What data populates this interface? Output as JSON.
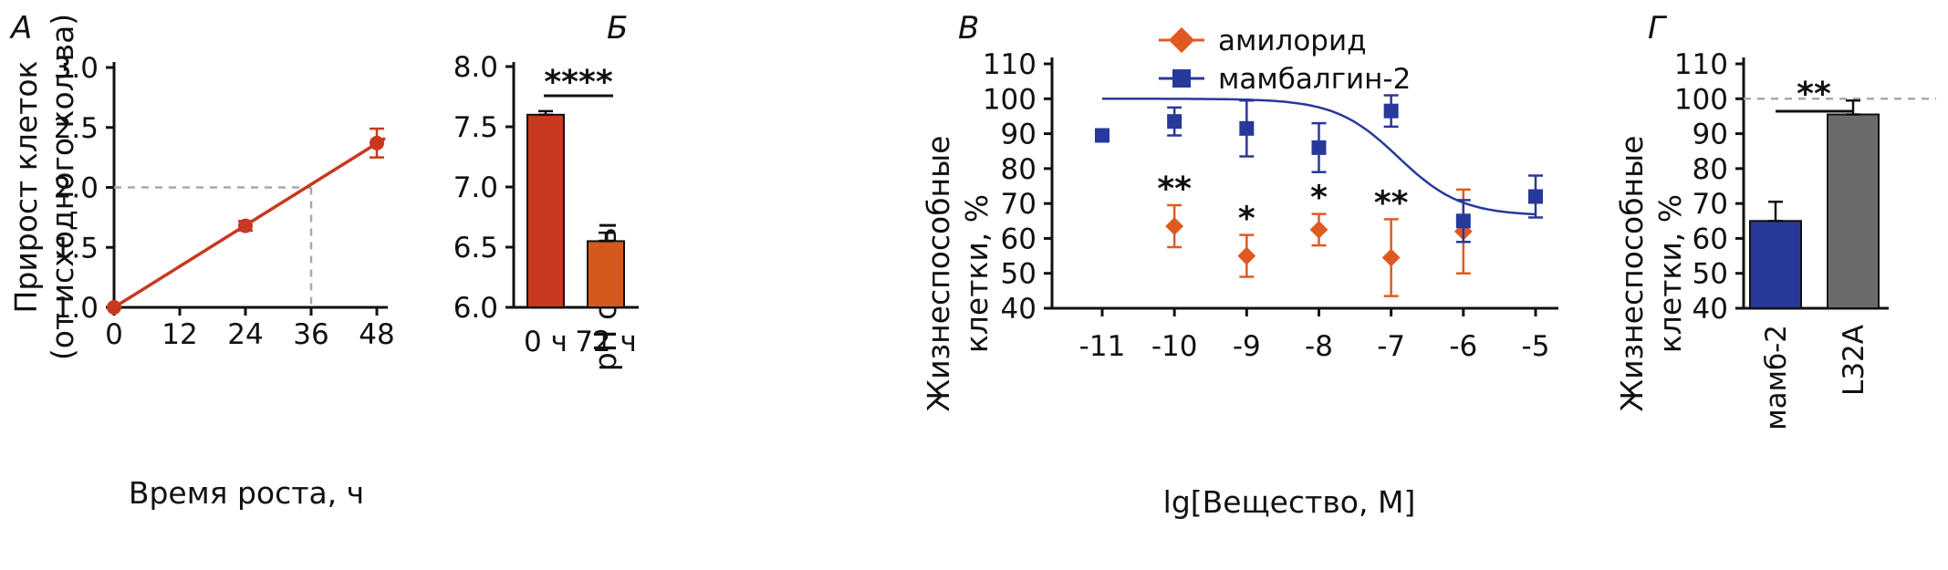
{
  "panels": {
    "a": {
      "letter": "А"
    },
    "b": {
      "letter": "Б"
    },
    "c": {
      "letter": "В"
    },
    "d": {
      "letter": "Г"
    }
  },
  "colors": {
    "red": "#c8381f",
    "orange": "#d35a1a",
    "amiloride": "#df5a20",
    "blue": "#27399a",
    "gray": "#6b6b6b",
    "dashed": "#a9a9a9"
  },
  "chart_data": [
    {
      "type": "line",
      "ylabel_lines": [
        "Прирост клеток",
        "(от исходного кол-ва)"
      ],
      "xlabel": "Время роста, ч",
      "xlim": [
        0,
        50
      ],
      "ylim": [
        1.0,
        3.0
      ],
      "x_ticks": [
        0,
        12,
        24,
        36,
        48
      ],
      "y_ticks": [
        1.0,
        1.5,
        2.0,
        2.5,
        3.0
      ],
      "y_tick_labels": [
        "1.0",
        "1.5",
        "2.0",
        "2.5",
        "3.0"
      ],
      "series": [
        {
          "x": [
            0,
            24,
            48
          ],
          "y": [
            1.0,
            1.68,
            2.37
          ],
          "err": [
            0.01,
            0.04,
            0.12
          ],
          "color": "#c8381f"
        }
      ],
      "fit_line": {
        "x": [
          0,
          49.5
        ],
        "y": [
          1.0,
          2.41
        ]
      },
      "reference": {
        "x": 36,
        "y": 2.0,
        "style": "dashed"
      },
      "grid": false
    },
    {
      "type": "bar",
      "ylabel": "pH среды",
      "categories": [
        "0 ч",
        "72 ч"
      ],
      "values": [
        7.6,
        6.55
      ],
      "err": [
        0.03,
        0.07
      ],
      "colors": [
        "#c8381f",
        "#d35a1a"
      ],
      "ylim": [
        6.0,
        8.0
      ],
      "y_ticks": [
        6.0,
        6.5,
        7.0,
        7.5,
        8.0
      ],
      "y_tick_labels": [
        "6.0",
        "6.5",
        "7.0",
        "7.5",
        "8.0"
      ],
      "significance": "****",
      "grid": false
    },
    {
      "type": "scatter",
      "ylabel_lines": [
        "Жизнеспособные",
        "клетки, %"
      ],
      "xlabel": "lg[Вещество, М]",
      "xlim": [
        -11.5,
        -4.8
      ],
      "ylim": [
        40,
        110
      ],
      "x_ticks": [
        -11,
        -10,
        -9,
        -8,
        -7,
        -6,
        -5
      ],
      "x_tick_labels": [
        "-11",
        "-10",
        "-9",
        "-8",
        "-7",
        "-6",
        "-5"
      ],
      "y_ticks": [
        40,
        50,
        60,
        70,
        80,
        90,
        100,
        110
      ],
      "legend_position": "top",
      "series": [
        {
          "name": "амилорид",
          "marker": "diamond",
          "color": "#df5a20",
          "x": [
            -10,
            -9,
            -8,
            -7,
            -6
          ],
          "y": [
            63.5,
            55,
            62.5,
            54.5,
            62
          ],
          "err": [
            6,
            6,
            4.5,
            11,
            12
          ]
        },
        {
          "name": "мамбалгин-2",
          "marker": "square",
          "color": "#27399a",
          "x": [
            -11,
            -10,
            -9,
            -8,
            -7,
            -6,
            -5
          ],
          "y": [
            89.5,
            93.5,
            91.5,
            86,
            96.5,
            65,
            72
          ],
          "err": [
            1.5,
            4,
            8,
            7,
            4.5,
            6,
            6
          ]
        }
      ],
      "fit_curve": {
        "series": "мамбалгин-2",
        "top": 100,
        "bottom": 66.5,
        "logEC50": -6.9,
        "hill": 1.0,
        "x_range": [
          -11,
          -5
        ]
      },
      "annotations": [
        {
          "x": -10,
          "label": "**"
        },
        {
          "x": -9,
          "label": "*"
        },
        {
          "x": -8,
          "label": "*"
        },
        {
          "x": -7,
          "label": "**"
        }
      ],
      "grid": false
    },
    {
      "type": "bar",
      "ylabel_lines": [
        "Жизнеспособные",
        "клетки, %"
      ],
      "categories": [
        "мамб-2",
        "L32A"
      ],
      "values": [
        65,
        95.5
      ],
      "err": [
        5.5,
        4
      ],
      "colors": [
        "#27399a",
        "#6b6b6b"
      ],
      "ylim": [
        40,
        110
      ],
      "y_ticks": [
        40,
        50,
        60,
        70,
        80,
        90,
        100,
        110
      ],
      "reference_y": 100,
      "significance": "**",
      "grid": false
    }
  ]
}
